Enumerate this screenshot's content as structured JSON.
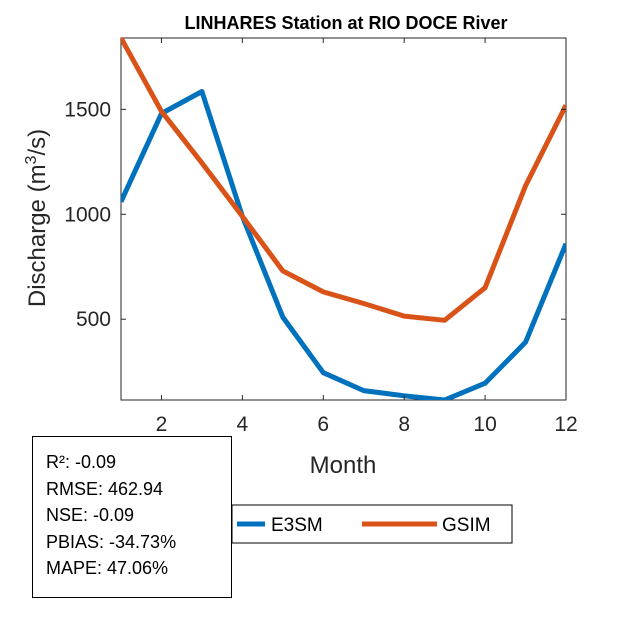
{
  "chart_data": {
    "type": "line",
    "title": "LINHARES  Station at  RIO DOCE  River",
    "xlabel": "Month",
    "ylabel": "Discharge (m³/s)",
    "ylabel_parts": {
      "before": "Discharge (m",
      "sup": "3",
      "after": "/s)"
    },
    "x": [
      1,
      2,
      3,
      4,
      5,
      6,
      7,
      8,
      9,
      10,
      11,
      12
    ],
    "xlim": [
      1,
      12
    ],
    "ylim": [
      115,
      1840
    ],
    "xticks": [
      2,
      4,
      6,
      8,
      10,
      12
    ],
    "yticks": [
      500,
      1000,
      1500
    ],
    "grid": false,
    "series": [
      {
        "name": "E3SM",
        "color": "#0072BD",
        "values": [
          1060,
          1480,
          1585,
          990,
          510,
          245,
          160,
          135,
          115,
          195,
          390,
          860
        ]
      },
      {
        "name": "GSIM",
        "color": "#D95319",
        "values": [
          1840,
          1490,
          1245,
          990,
          730,
          630,
          575,
          515,
          495,
          650,
          1135,
          1520
        ]
      }
    ],
    "legend": {
      "position": "bottom-center",
      "entries": [
        "E3SM",
        "GSIM"
      ]
    }
  },
  "stats": [
    "R²: -0.09",
    "RMSE: 462.94",
    "NSE: -0.09",
    "PBIAS: -34.73%",
    "MAPE: 47.06%"
  ]
}
